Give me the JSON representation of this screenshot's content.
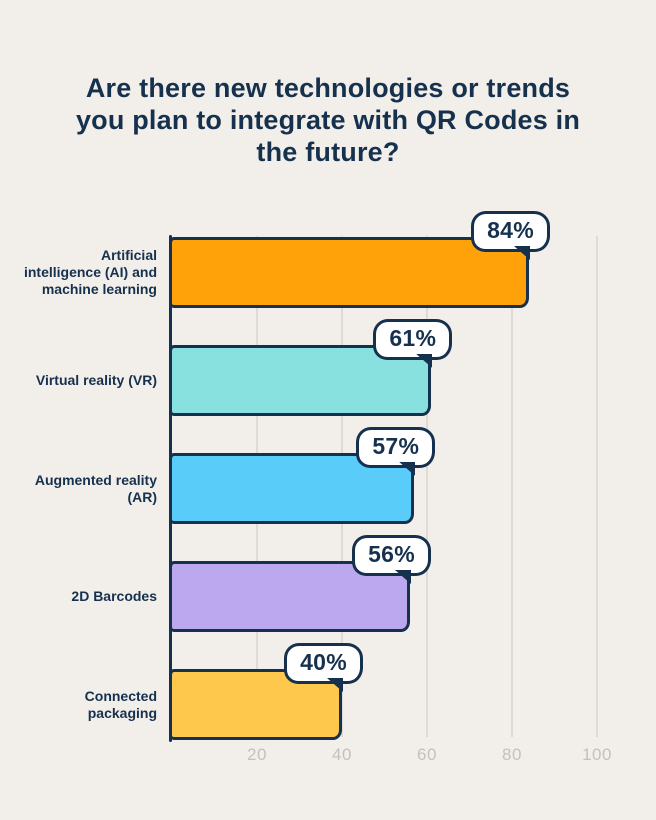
{
  "title": "Are there new technologies or trends you plan to integrate with QR Codes in the future?",
  "title_lines": [
    "Are there new technologies or trends",
    "you plan to integrate with QR Codes in",
    "the future?"
  ],
  "chart_data": {
    "type": "bar",
    "orientation": "horizontal",
    "title": "Are there new technologies or trends you plan to integrate with QR Codes in the future?",
    "categories": [
      "Artificial intelligence (AI) and machine learning",
      "Virtual reality (VR)",
      "Augmented reality (AR)",
      "2D Barcodes",
      "Connected packaging"
    ],
    "label_lines": [
      [
        "Artificial",
        "intelligence (AI) and",
        "machine learning"
      ],
      [
        "Virtual reality (VR)"
      ],
      [
        "Augmented reality",
        "(AR)"
      ],
      [
        "2D Barcodes"
      ],
      [
        "Connected",
        "packaging"
      ]
    ],
    "values": [
      84,
      61,
      57,
      56,
      40
    ],
    "value_labels": [
      "84%",
      "61%",
      "57%",
      "56%",
      "40%"
    ],
    "bar_colors": [
      "#FFA108",
      "#88E1DF",
      "#5ACCFA",
      "#BCA8EE",
      "#FDC84B"
    ],
    "x_ticks": [
      "20",
      "40",
      "60",
      "80",
      "100"
    ],
    "x_tick_values": [
      20,
      40,
      60,
      80,
      100
    ],
    "xlim": [
      0,
      100
    ],
    "grid": true,
    "legend": false
  },
  "colors": {
    "background": "#F2EEE9",
    "ink": "#16314E",
    "grid": "#DFDBD4",
    "tick_text": "#C6C0B9",
    "badge_bg": "#FFFFFF"
  }
}
